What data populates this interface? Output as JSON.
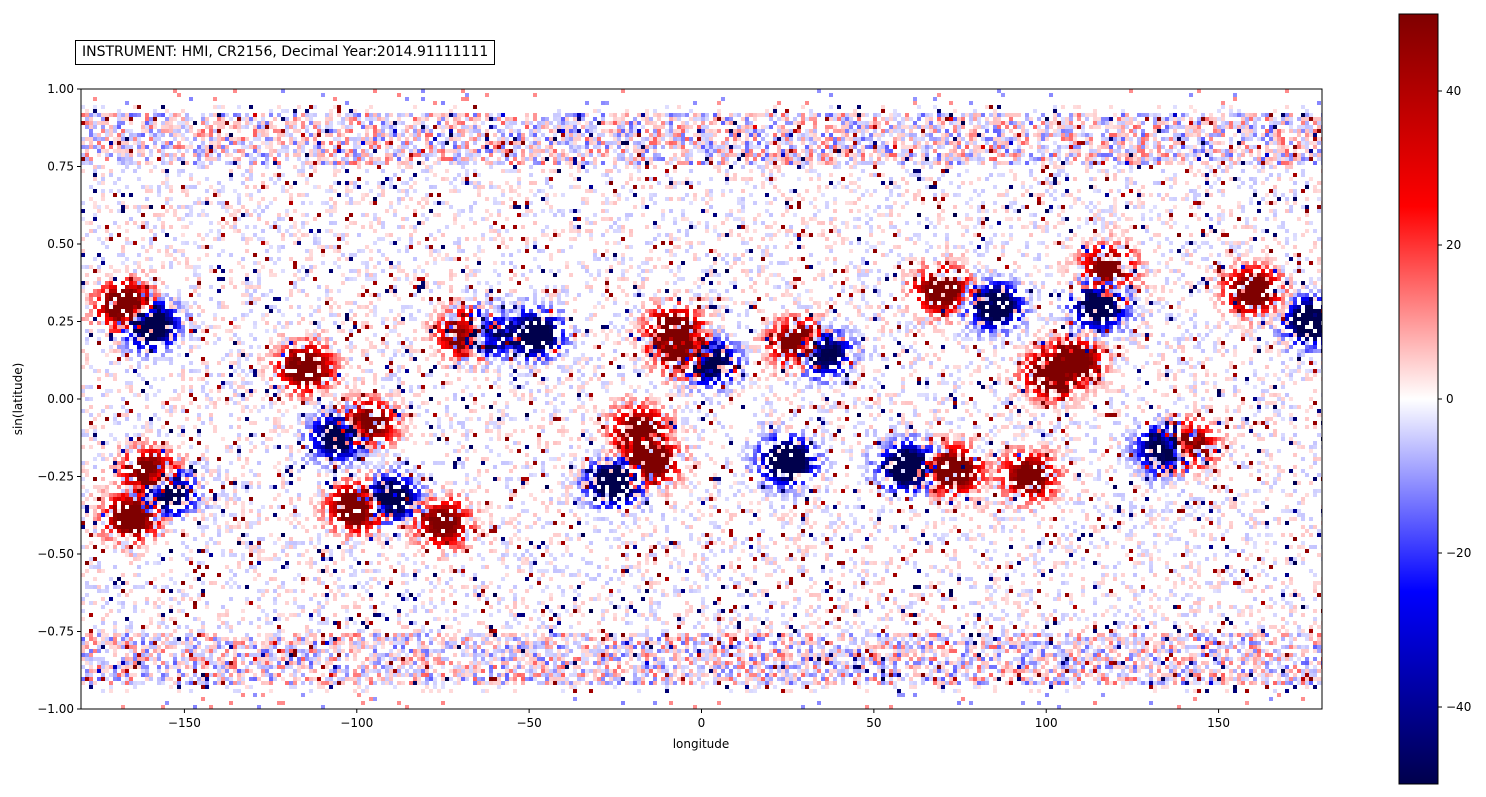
{
  "chart_data": {
    "type": "heatmap",
    "title": "INSTRUMENT: HMI,  CR2156, Decimal Year:2014.91111111",
    "xlabel": "longitude",
    "ylabel": "sin(latitude)",
    "xlim": [
      -180,
      180
    ],
    "ylim": [
      -1.0,
      1.0
    ],
    "x_ticks": [
      -150,
      -100,
      -50,
      0,
      50,
      100,
      150
    ],
    "x_tick_labels": [
      "−150",
      "−100",
      "−50",
      "0",
      "50",
      "100",
      "150"
    ],
    "y_ticks": [
      1.0,
      0.75,
      0.5,
      0.25,
      0.0,
      -0.25,
      -0.5,
      -0.75,
      -1.0
    ],
    "y_tick_labels": [
      "1.00",
      "0.75",
      "0.50",
      "0.25",
      "0.00",
      "−0.25",
      "−0.50",
      "−0.75",
      "−1.00"
    ],
    "colorbar": {
      "colormap": "seismic",
      "range": [
        -50,
        50
      ],
      "ticks": [
        40,
        20,
        0,
        -20,
        -40
      ],
      "tick_labels": [
        "40",
        "20",
        "0",
        "−20",
        "−40"
      ],
      "colors": [
        "#00004c",
        "#0000ff",
        "#ffffff",
        "#ff0000",
        "#7f0000"
      ]
    },
    "grid": false,
    "active_regions": [
      {
        "lon": -167,
        "lat": 0.3,
        "value": 50
      },
      {
        "lon": -160,
        "lat": 0.24,
        "value": -50
      },
      {
        "lon": -160,
        "lat": -0.24,
        "value": 45
      },
      {
        "lon": -165,
        "lat": -0.38,
        "value": 45
      },
      {
        "lon": -155,
        "lat": -0.3,
        "value": -45
      },
      {
        "lon": -115,
        "lat": 0.1,
        "value": 45
      },
      {
        "lon": -105,
        "lat": -0.12,
        "value": -45
      },
      {
        "lon": -97,
        "lat": -0.08,
        "value": 45
      },
      {
        "lon": -100,
        "lat": -0.35,
        "value": 50
      },
      {
        "lon": -90,
        "lat": -0.32,
        "value": -45
      },
      {
        "lon": -68,
        "lat": 0.21,
        "value": 50
      },
      {
        "lon": -63,
        "lat": 0.21,
        "value": -45
      },
      {
        "lon": -48,
        "lat": 0.21,
        "value": -45
      },
      {
        "lon": -8,
        "lat": 0.22,
        "value": 45
      },
      {
        "lon": -5,
        "lat": 0.15,
        "value": 45
      },
      {
        "lon": 2,
        "lat": 0.12,
        "value": -45
      },
      {
        "lon": -15,
        "lat": -0.2,
        "value": 50
      },
      {
        "lon": -25,
        "lat": -0.27,
        "value": -50
      },
      {
        "lon": -18,
        "lat": -0.1,
        "value": 40
      },
      {
        "lon": 25,
        "lat": -0.2,
        "value": -50
      },
      {
        "lon": 28,
        "lat": 0.18,
        "value": 45
      },
      {
        "lon": 35,
        "lat": 0.15,
        "value": -45
      },
      {
        "lon": 60,
        "lat": -0.22,
        "value": -50
      },
      {
        "lon": 73,
        "lat": -0.23,
        "value": 50
      },
      {
        "lon": 70,
        "lat": 0.35,
        "value": 45
      },
      {
        "lon": 85,
        "lat": 0.3,
        "value": -45
      },
      {
        "lon": 102,
        "lat": 0.08,
        "value": 50
      },
      {
        "lon": 108,
        "lat": 0.12,
        "value": 45
      },
      {
        "lon": 115,
        "lat": 0.3,
        "value": -45
      },
      {
        "lon": 118,
        "lat": 0.42,
        "value": 40
      },
      {
        "lon": 135,
        "lat": -0.16,
        "value": -50
      },
      {
        "lon": 141,
        "lat": -0.15,
        "value": 45
      },
      {
        "lon": 160,
        "lat": 0.35,
        "value": 45
      },
      {
        "lon": 177,
        "lat": 0.25,
        "value": -50
      },
      {
        "lon": 95,
        "lat": -0.25,
        "value": 40
      },
      {
        "lon": -75,
        "lat": -0.4,
        "value": 40
      }
    ]
  }
}
